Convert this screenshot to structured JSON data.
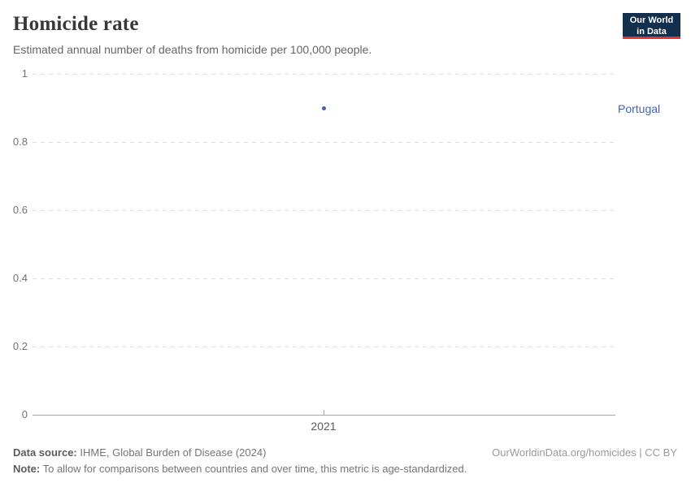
{
  "header": {
    "title": "Homicide rate",
    "subtitle": "Estimated annual number of deaths from homicide per 100,000 people.",
    "logo_line1": "Our World",
    "logo_line2": "in Data"
  },
  "chart_data": {
    "type": "scatter",
    "title": "Homicide rate",
    "subtitle": "Estimated annual number of deaths from homicide per 100,000 people.",
    "series": [
      {
        "name": "Portugal",
        "x": [
          2021
        ],
        "values": [
          0.9
        ],
        "color": "#4064ac"
      }
    ],
    "xlabel": "",
    "ylabel": "",
    "ylim": [
      0,
      1
    ],
    "y_ticks": [
      0,
      0.2,
      0.4,
      0.6,
      0.8,
      1
    ],
    "x_tick_labels": [
      "2021"
    ],
    "grid": "horizontal-dashed",
    "legend_position": "right-end-of-series"
  },
  "footer": {
    "source_label": "Data source:",
    "source_text": " IHME, Global Burden of Disease (2024)",
    "note_label": "Note:",
    "note_text": " To allow for comparisons between countries and over time, this metric is age-standardized.",
    "link_text": "OurWorldinData.org/homicides | CC BY"
  },
  "colors": {
    "accent_blue": "#4064ac",
    "logo_navy": "#12304e",
    "logo_red": "#e5332d",
    "gridline": "#dedede",
    "axis_line": "#a6a6a6",
    "title_text": "#383838",
    "subtitle_text": "#666666"
  }
}
